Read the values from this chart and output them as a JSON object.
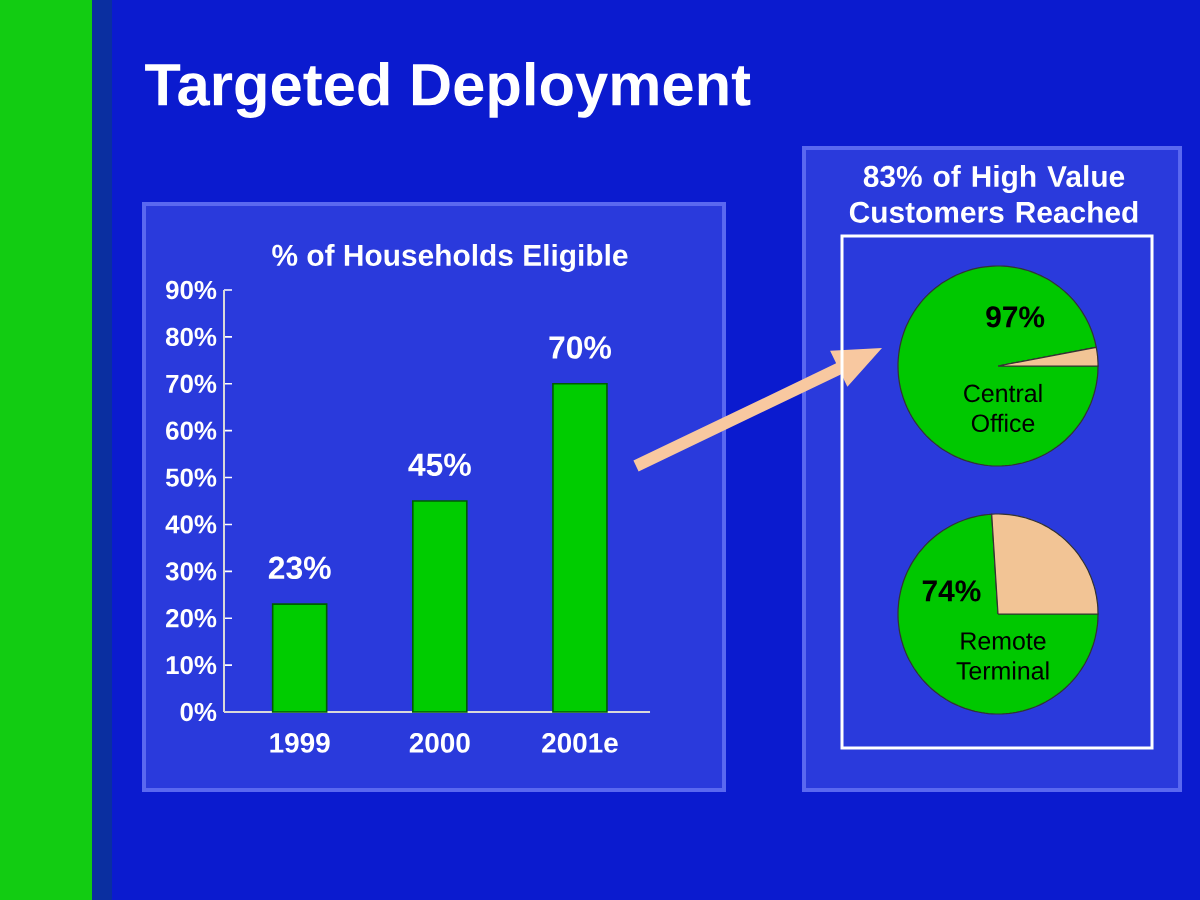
{
  "chart_data": [
    {
      "type": "bar",
      "title": "Targeted Deployment",
      "subtitle": "% of Households Eligible",
      "categories": [
        "1999",
        "2000",
        "2001e"
      ],
      "values": [
        23,
        45,
        70
      ],
      "value_labels": [
        "23%",
        "45%",
        "70%"
      ],
      "color": "#00cc00",
      "ylim": [
        0,
        90
      ],
      "yticks": [
        {
          "value": 0,
          "label": "0%"
        },
        {
          "value": 10,
          "label": "10%"
        },
        {
          "value": 20,
          "label": "20%"
        },
        {
          "value": 30,
          "label": "30%"
        },
        {
          "value": 40,
          "label": "40%"
        },
        {
          "value": 50,
          "label": "50%"
        },
        {
          "value": 60,
          "label": "60%"
        },
        {
          "value": 70,
          "label": "70%"
        },
        {
          "value": 80,
          "label": "80%"
        },
        {
          "value": 90,
          "label": "90%"
        }
      ]
    },
    {
      "type": "pie",
      "title": "Central Office",
      "annotations": [
        "83% of High Value Customers Reached"
      ],
      "categories": [
        null,
        null
      ],
      "values": [
        97,
        3
      ],
      "colors": [
        "#00c800",
        "#f2c495"
      ],
      "value_labels": [
        "97%",
        null
      ]
    },
    {
      "type": "pie",
      "title": "Remote Terminal",
      "categories": [
        null,
        null
      ],
      "values": [
        74,
        26
      ],
      "colors": [
        "#00c800",
        "#f2c495"
      ],
      "value_labels": [
        "74%",
        null
      ]
    }
  ]
}
